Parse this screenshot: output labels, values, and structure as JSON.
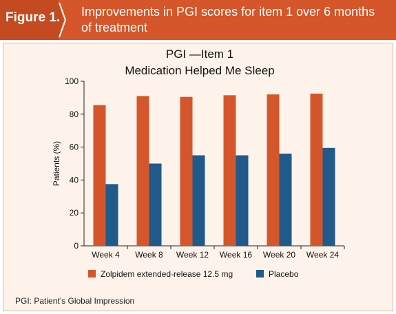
{
  "header": {
    "figure_label": "Figure 1.",
    "title": "Improvements in PGI scores for item 1 over 6 months of treatment"
  },
  "footnote": "PGI: Patient’s Global Impression",
  "colors": {
    "header_bg": "#d4562a",
    "panel_bg": "#fdf3ea",
    "zolpidem": "#d4562a",
    "placebo": "#1f5a8a"
  },
  "chart_data": {
    "type": "bar",
    "title_lines": [
      "PGI —Item 1",
      "Medication Helped Me Sleep"
    ],
    "ylabel": "Patients (%)",
    "xlabel": "",
    "ylim": [
      0,
      100
    ],
    "yticks": [
      0,
      20,
      40,
      60,
      80,
      100
    ],
    "grid": false,
    "legend_position": "bottom",
    "categories": [
      "Week 4",
      "Week 8",
      "Week 12",
      "Week 16",
      "Week 20",
      "Week 24"
    ],
    "series": [
      {
        "name": "Zolpidem extended-release 12.5 mg",
        "color": "#d4562a",
        "values": [
          85.5,
          91,
          90.5,
          91.5,
          92,
          92.5
        ]
      },
      {
        "name": "Placebo",
        "color": "#1f5a8a",
        "values": [
          37.5,
          50,
          55,
          55,
          56,
          59.5
        ]
      }
    ]
  }
}
